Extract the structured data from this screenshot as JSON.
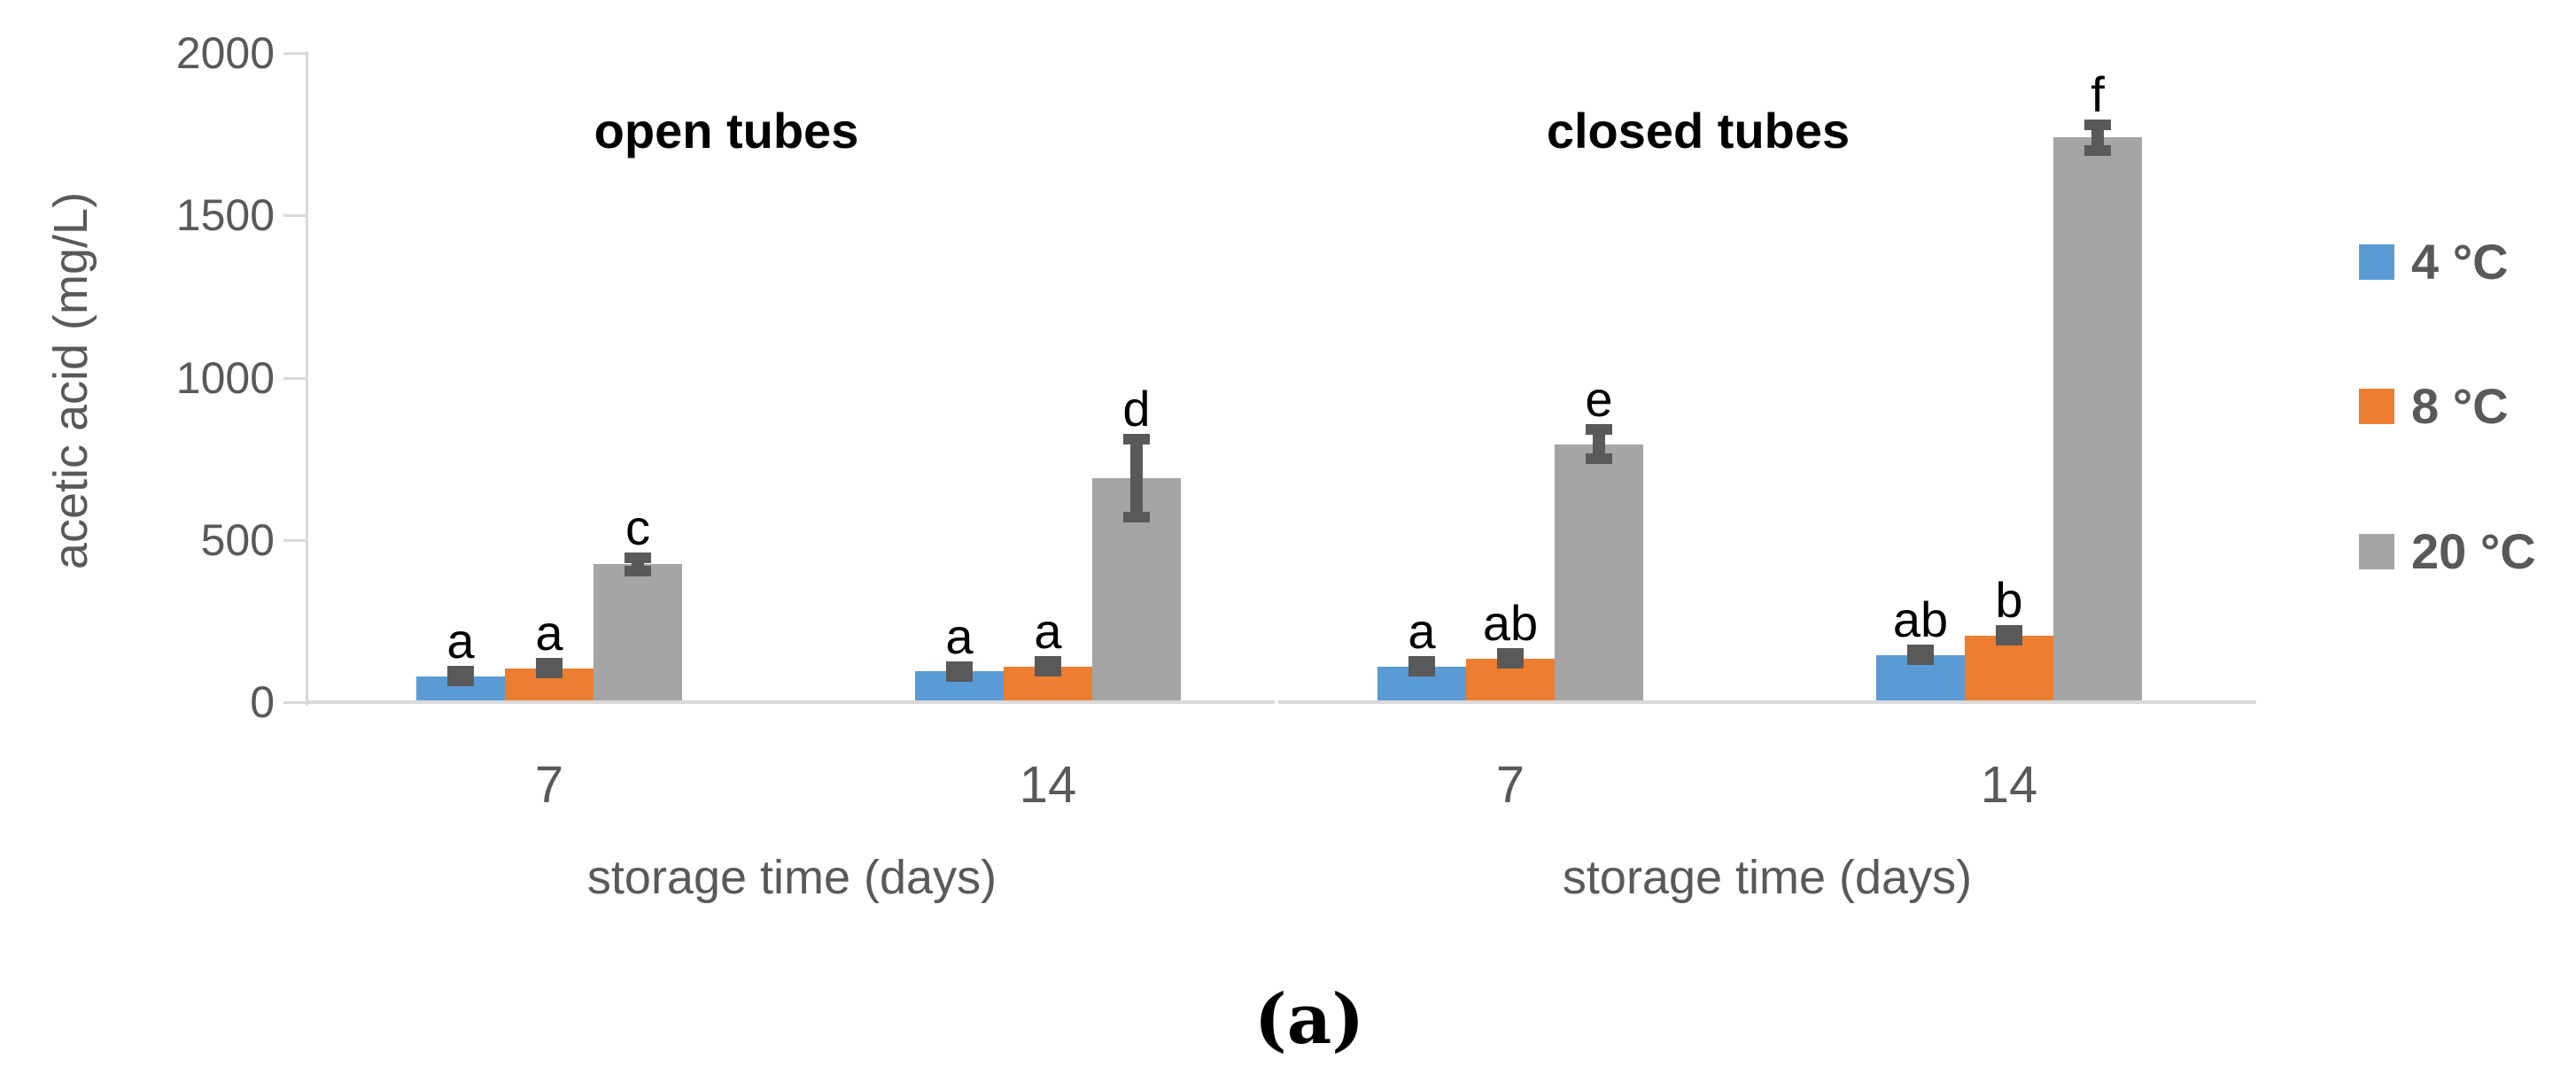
{
  "figure": {
    "caption": "(a)",
    "y_axis": {
      "title": "acetic acid (mg/L)",
      "tick_labels": [
        "0",
        "500",
        "1000",
        "1500",
        "2000"
      ]
    },
    "legend": [
      {
        "label": "4 °C",
        "color": "#5b9bd5"
      },
      {
        "label": "8 °C",
        "color": "#ed7d31"
      },
      {
        "label": "20 °C",
        "color": "#a5a5a5"
      }
    ],
    "colors": {
      "axis_line": "#d9d9d9",
      "error_bar": "#595959",
      "tick_text": "#595959"
    }
  },
  "chart_data": {
    "type": "bar",
    "ylabel": "acetic acid (mg/L)",
    "ylim": [
      0,
      2000
    ],
    "yticks": [
      0,
      500,
      1000,
      1500,
      2000
    ],
    "grid": false,
    "legend_position": "right",
    "panels": [
      {
        "title": "open tubes",
        "xlabel": "storage time (days)",
        "categories": [
          "7",
          "14"
        ],
        "series": [
          {
            "name": "4 °C",
            "color": "#5b9bd5",
            "values": [
              80,
              95
            ],
            "errors": [
              15,
              15
            ],
            "letters": [
              "a",
              "a"
            ]
          },
          {
            "name": "8 °C",
            "color": "#ed7d31",
            "values": [
              105,
              110
            ],
            "errors": [
              15,
              15
            ],
            "letters": [
              "a",
              "a"
            ]
          },
          {
            "name": "20 °C",
            "color": "#a5a5a5",
            "values": [
              425,
              690
            ],
            "errors": [
              20,
              120
            ],
            "letters": [
              "c",
              "d"
            ]
          }
        ]
      },
      {
        "title": "closed tubes",
        "xlabel": "storage time (days)",
        "categories": [
          "7",
          "14"
        ],
        "series": [
          {
            "name": "4 °C",
            "color": "#5b9bd5",
            "values": [
              110,
              145
            ],
            "errors": [
              15,
              15
            ],
            "letters": [
              "a",
              "ab"
            ]
          },
          {
            "name": "8 °C",
            "color": "#ed7d31",
            "values": [
              135,
              205
            ],
            "errors": [
              15,
              15
            ],
            "letters": [
              "ab",
              "b"
            ]
          },
          {
            "name": "20 °C",
            "color": "#a5a5a5",
            "values": [
              795,
              1740
            ],
            "errors": [
              45,
              40
            ],
            "letters": [
              "e",
              "f"
            ]
          }
        ]
      }
    ]
  }
}
